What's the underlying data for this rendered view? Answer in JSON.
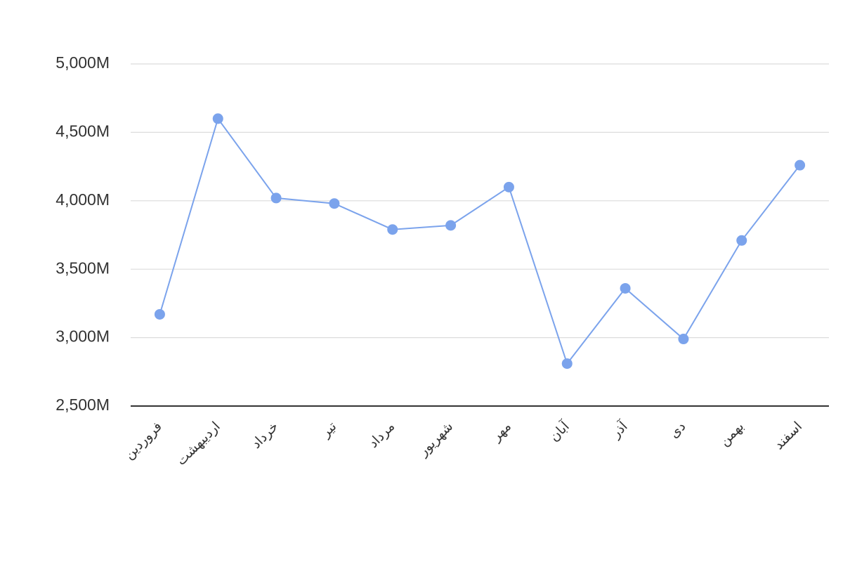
{
  "chart_data": {
    "type": "line",
    "categories": [
      "فروردین",
      "اردیبهشت",
      "خرداد",
      "تیر",
      "مرداد",
      "شهریور",
      "مهر",
      "آبان",
      "آذر",
      "دی",
      "بهمن",
      "اسفند"
    ],
    "series": [
      {
        "color": "#7ba3ec",
        "values": [
          3170,
          4600,
          4020,
          3980,
          3790,
          3820,
          4100,
          2810,
          3360,
          2990,
          3710,
          4260
        ]
      }
    ],
    "ylim": [
      2500,
      5000
    ],
    "yticks": [
      {
        "value": 2500,
        "label": "2,500M"
      },
      {
        "value": 3000,
        "label": "3,000M"
      },
      {
        "value": 3500,
        "label": "3,500M"
      },
      {
        "value": 4000,
        "label": "4,000M"
      },
      {
        "value": 4500,
        "label": "4,500M"
      },
      {
        "value": 5000,
        "label": "5,000M"
      }
    ],
    "grid": true
  }
}
